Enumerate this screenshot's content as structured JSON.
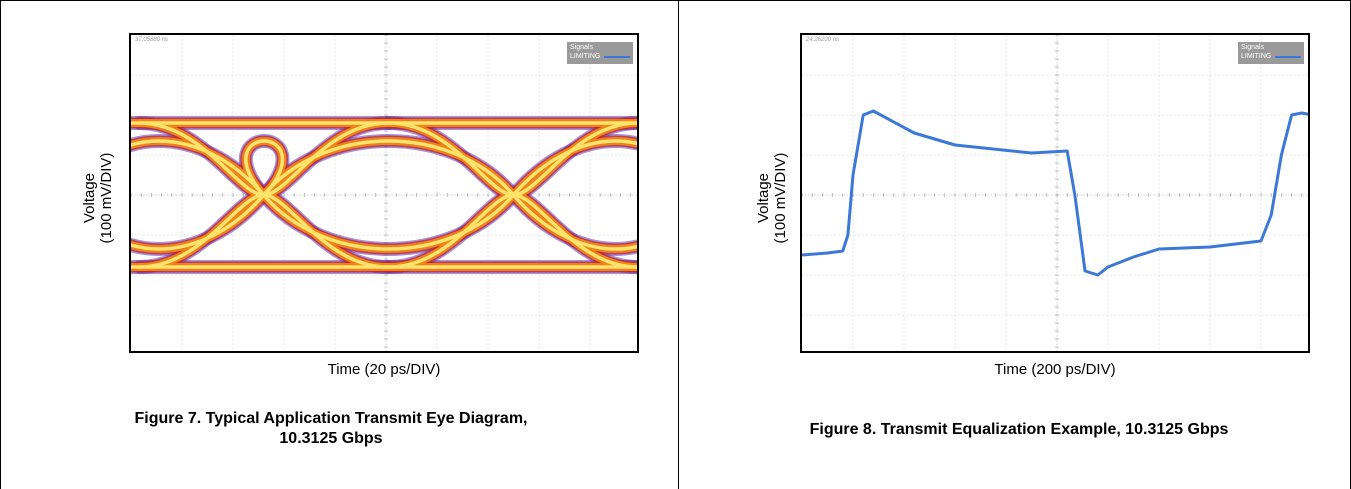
{
  "figures": [
    {
      "id": "fig7",
      "caption_line1": "Figure 7. Typical Application Transmit Eye Diagram,",
      "caption_line2": "10.3125 Gbps",
      "xlabel": "Time (20 ps/DIV)",
      "ylabel_line1": "Voltage",
      "ylabel_line2": "(100 mV/DIV)",
      "timestamp": "37.05880 ns",
      "legend_title": "Signals",
      "legend_entry": "LIMITING"
    },
    {
      "id": "fig8",
      "caption_line1": "Figure 8. Transmit Equalization Example, 10.3125 Gbps",
      "xlabel": "Time (200 ps/DIV)",
      "ylabel_line1": "Voltage",
      "ylabel_line2": "(100 mV/DIV)",
      "timestamp": "24.26200 ns",
      "legend_title": "Signals",
      "legend_entry": "LIMITING"
    }
  ],
  "chart_data": [
    {
      "type": "eye-diagram",
      "xlabel": "Time (20 ps/DIV)",
      "ylabel": "Voltage (100 mV/DIV)",
      "divisions": {
        "x": 10,
        "y": 8
      },
      "crossings_div": [
        2.6,
        7.5
      ],
      "levels_div": {
        "high": 1.8,
        "low": -1.8
      },
      "colors": {
        "core": "#ffe36a",
        "mid": "#f08a1a",
        "edge": "#cc2222",
        "outer": "#5a37c8"
      },
      "grid": true
    },
    {
      "type": "line",
      "xlabel": "Time (200 ps/DIV)",
      "ylabel": "Voltage (100 mV/DIV)",
      "divisions": {
        "x": 10,
        "y": 8
      },
      "ylim_div": [
        -4,
        4
      ],
      "color": "#3c78d8",
      "grid": true,
      "x_div": [
        0,
        0.5,
        0.8,
        0.9,
        1.0,
        1.2,
        1.4,
        2.2,
        3.0,
        4.5,
        5.2,
        5.35,
        5.55,
        5.8,
        6.0,
        6.5,
        7.0,
        8.0,
        9.0,
        9.2,
        9.4,
        9.6,
        9.8,
        10.0
      ],
      "y_div": [
        -1.5,
        -1.45,
        -1.4,
        -1.0,
        0.5,
        2.0,
        2.1,
        1.55,
        1.25,
        1.05,
        1.1,
        0.0,
        -1.9,
        -2.0,
        -1.8,
        -1.55,
        -1.35,
        -1.3,
        -1.15,
        -0.5,
        1.0,
        2.0,
        2.05,
        2.0
      ]
    }
  ]
}
